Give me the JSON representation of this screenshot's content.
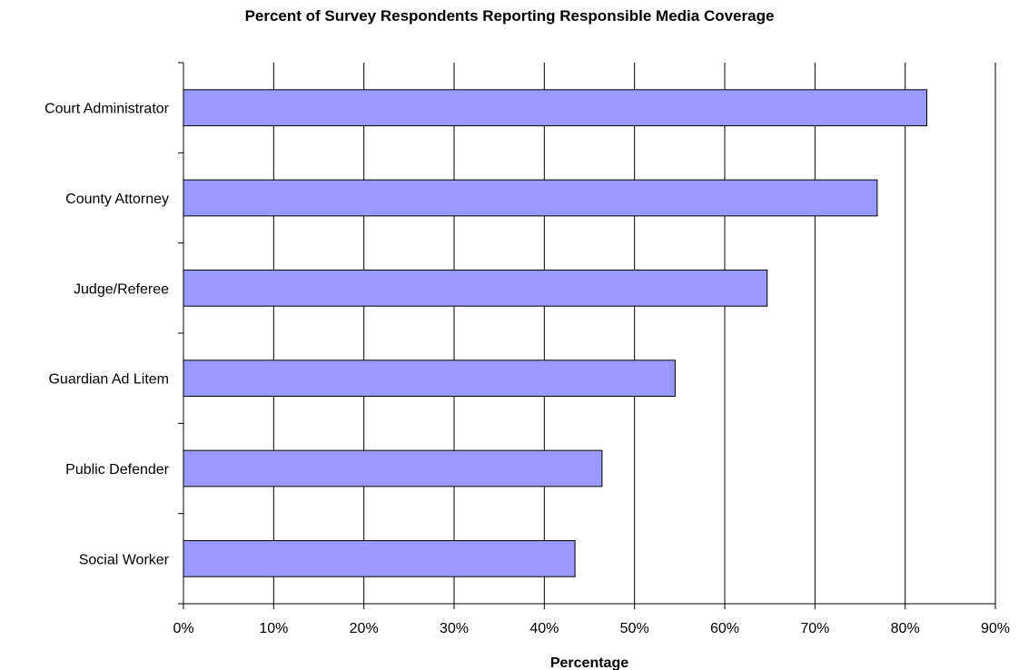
{
  "chart_data": {
    "type": "bar",
    "orientation": "horizontal",
    "title": "Percent of Survey Respondents Reporting Responsible Media Coverage",
    "xlabel": "Percentage",
    "ylabel": "",
    "categories": [
      "Court Administrator",
      "County Attorney",
      "Judge/Referee",
      "Guardian Ad Litem",
      "Public Defender",
      "Social Worker"
    ],
    "values": [
      82.4,
      76.9,
      64.7,
      54.5,
      46.4,
      43.4
    ],
    "xlim": [
      0,
      90
    ],
    "x_ticks": [
      "0%",
      "10%",
      "20%",
      "30%",
      "40%",
      "50%",
      "60%",
      "70%",
      "80%",
      "90%"
    ],
    "grid": "vertical",
    "legend": "none",
    "bar_color": "#9999ff",
    "bar_border_color": "#000000"
  }
}
